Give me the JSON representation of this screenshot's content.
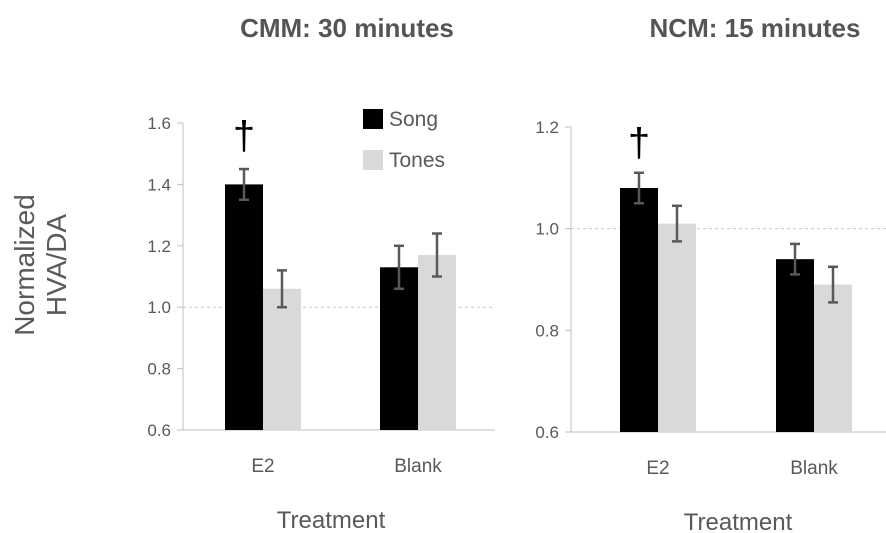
{
  "ylabel_lines": [
    "Normalized",
    "HVA/DA"
  ],
  "legend": [
    {
      "label": "Song",
      "color": "#000000"
    },
    {
      "label": "Tones",
      "color": "#d9d9d9"
    }
  ],
  "chart_data": [
    {
      "type": "bar",
      "title": "CMM: 30 minutes",
      "xlabel": "Treatment",
      "categories": [
        "E2",
        "Blank"
      ],
      "series": [
        {
          "name": "Song",
          "color": "#000000",
          "values": [
            1.4,
            1.13
          ],
          "errors": [
            0.05,
            0.07
          ]
        },
        {
          "name": "Tones",
          "color": "#d9d9d9",
          "values": [
            1.06,
            1.17
          ],
          "errors": [
            0.06,
            0.07
          ]
        }
      ],
      "ylim": [
        0.6,
        1.6
      ],
      "yticks": [
        "0.6",
        "0.8",
        "1.0",
        "1.2",
        "1.4",
        "1.6"
      ],
      "reference_line": 1.0,
      "annotations": [
        {
          "text": "†",
          "category": "E2"
        }
      ],
      "legend_position": "top-right"
    },
    {
      "type": "bar",
      "title": "NCM: 15 minutes",
      "xlabel": "Treatment",
      "categories": [
        "E2",
        "Blank"
      ],
      "series": [
        {
          "name": "Song",
          "color": "#000000",
          "values": [
            1.08,
            0.94
          ],
          "errors": [
            0.03,
            0.03
          ]
        },
        {
          "name": "Tones",
          "color": "#d9d9d9",
          "values": [
            1.01,
            0.89
          ],
          "errors": [
            0.035,
            0.035
          ]
        }
      ],
      "ylim": [
        0.6,
        1.2
      ],
      "yticks": [
        "0.6",
        "0.8",
        "1.0",
        "1.2"
      ],
      "reference_line": 1.0,
      "annotations": [
        {
          "text": "†",
          "category": "E2"
        }
      ]
    }
  ]
}
